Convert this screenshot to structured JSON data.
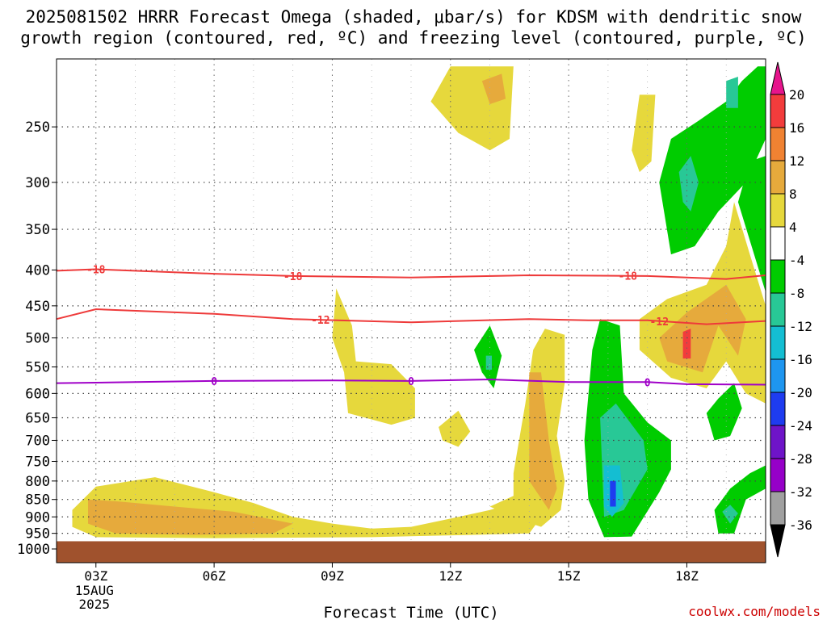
{
  "title_line1": "2025081502 HRRR Forecast Omega (shaded, μbar/s) for KDSM with dendritic snow",
  "title_line2": "growth region (contoured, red, ºC) and freezing level (contoured, purple, ºC)",
  "credit": "coolwx.com/models",
  "chart_data": {
    "type": "heatmap",
    "title": "2025081502 HRRR Forecast Omega (shaded, μbar/s) for KDSM with dendritic snow growth region (contoured, red, ºC) and freezing level (contoured, purple, ºC)",
    "xlabel": "Forecast Time (UTC)",
    "ylabel": "",
    "x_ticks": [
      "03Z",
      "06Z",
      "09Z",
      "12Z",
      "15Z",
      "18Z"
    ],
    "x_tick_hours": [
      3,
      6,
      9,
      12,
      15,
      18
    ],
    "x_date_label": [
      "15AUG",
      "2025"
    ],
    "xlim": [
      2.0,
      20.0
    ],
    "y_ticks": [
      250,
      300,
      350,
      400,
      450,
      500,
      550,
      600,
      650,
      700,
      750,
      800,
      850,
      900,
      950,
      1000
    ],
    "ylim": [
      200,
      1000
    ],
    "y_scale": "log-pressure",
    "grid": true,
    "colorbar": {
      "labels": [
        20,
        16,
        12,
        8,
        4,
        -4,
        -8,
        -12,
        -16,
        -20,
        -24,
        -28,
        -32,
        -36
      ],
      "bins": [
        {
          "lo": 16,
          "hi": 20,
          "color": "#f23c3c"
        },
        {
          "lo": 12,
          "hi": 16,
          "color": "#f08232"
        },
        {
          "lo": 8,
          "hi": 12,
          "color": "#e6aa3c"
        },
        {
          "lo": 4,
          "hi": 8,
          "color": "#e6d83c"
        },
        {
          "lo": -4,
          "hi": 4,
          "color": "#ffffff"
        },
        {
          "lo": -8,
          "hi": -4,
          "color": "#00cc00"
        },
        {
          "lo": -12,
          "hi": -8,
          "color": "#28c896"
        },
        {
          "lo": -16,
          "hi": -12,
          "color": "#14bed2"
        },
        {
          "lo": -20,
          "hi": -16,
          "color": "#1e96f0"
        },
        {
          "lo": -24,
          "hi": -20,
          "color": "#1e3cf0"
        },
        {
          "lo": -28,
          "hi": -24,
          "color": "#6e14c8"
        },
        {
          "lo": -32,
          "hi": -28,
          "color": "#9600c8"
        },
        {
          "lo": -36,
          "hi": -32,
          "color": "#a0a0a0"
        }
      ],
      "top_arrow_color": "#e6148c",
      "bottom_arrow_color": "#000000"
    },
    "omega_areas": [
      {
        "name": "upward-low-level-band",
        "color": "#e6d83c",
        "points": [
          [
            2.4,
            880
          ],
          [
            3.0,
            815
          ],
          [
            4.5,
            790
          ],
          [
            6.0,
            830
          ],
          [
            7.0,
            860
          ],
          [
            8.0,
            900
          ],
          [
            9.0,
            920
          ],
          [
            10.0,
            935
          ],
          [
            11.0,
            930
          ],
          [
            12.0,
            905
          ],
          [
            13.0,
            880
          ],
          [
            14.0,
            845
          ],
          [
            14.5,
            870
          ],
          [
            14.0,
            950
          ],
          [
            12.5,
            955
          ],
          [
            10.0,
            962
          ],
          [
            6.0,
            965
          ],
          [
            3.0,
            962
          ],
          [
            2.4,
            930
          ]
        ]
      },
      {
        "name": "upward-low-level-core",
        "color": "#e6aa3c",
        "points": [
          [
            2.8,
            850
          ],
          [
            3.5,
            855
          ],
          [
            5.0,
            870
          ],
          [
            6.5,
            885
          ],
          [
            8.0,
            920
          ],
          [
            7.5,
            950
          ],
          [
            5.5,
            955
          ],
          [
            3.5,
            950
          ],
          [
            2.8,
            920
          ]
        ]
      },
      {
        "name": "upward-aloft-11z-13z",
        "color": "#e6d83c",
        "points": [
          [
            11.5,
            230
          ],
          [
            12.0,
            205
          ],
          [
            13.6,
            205
          ],
          [
            13.5,
            260
          ],
          [
            13.0,
            270
          ],
          [
            12.2,
            255
          ]
        ]
      },
      {
        "name": "upward-aloft-core",
        "color": "#e6aa3c",
        "points": [
          [
            12.8,
            215
          ],
          [
            13.3,
            210
          ],
          [
            13.4,
            228
          ],
          [
            13.0,
            232
          ]
        ]
      },
      {
        "name": "upward-09z-column",
        "color": "#e6d83c",
        "points": [
          [
            9.1,
            425
          ],
          [
            9.5,
            480
          ],
          [
            9.6,
            540
          ],
          [
            10.5,
            545
          ],
          [
            11.1,
            590
          ],
          [
            11.1,
            650
          ],
          [
            10.5,
            665
          ],
          [
            9.4,
            640
          ],
          [
            9.3,
            560
          ],
          [
            9.0,
            500
          ]
        ]
      },
      {
        "name": "upward-14z-15z-column",
        "color": "#e6d83c",
        "points": [
          [
            13.6,
            780
          ],
          [
            13.9,
            620
          ],
          [
            14.1,
            520
          ],
          [
            14.4,
            485
          ],
          [
            14.9,
            495
          ],
          [
            14.9,
            580
          ],
          [
            14.7,
            690
          ],
          [
            14.9,
            800
          ],
          [
            14.8,
            880
          ],
          [
            14.3,
            930
          ],
          [
            13.8,
            910
          ],
          [
            13.0,
            870
          ],
          [
            13.6,
            840
          ]
        ]
      },
      {
        "name": "upward-14z-core",
        "color": "#e6aa3c",
        "points": [
          [
            14.0,
            560
          ],
          [
            14.3,
            560
          ],
          [
            14.5,
            700
          ],
          [
            14.7,
            820
          ],
          [
            14.5,
            880
          ],
          [
            14.0,
            800
          ]
        ]
      },
      {
        "name": "upward-12z-patch",
        "color": "#e6d83c",
        "points": [
          [
            11.7,
            670
          ],
          [
            12.2,
            635
          ],
          [
            12.5,
            680
          ],
          [
            12.2,
            715
          ],
          [
            11.8,
            700
          ]
        ]
      },
      {
        "name": "upward-16z-aloft",
        "color": "#e6d83c",
        "points": [
          [
            16.6,
            270
          ],
          [
            16.8,
            225
          ],
          [
            17.2,
            225
          ],
          [
            17.1,
            280
          ],
          [
            16.8,
            290
          ]
        ]
      },
      {
        "name": "upward-17z-20z-mass",
        "color": "#e6d83c",
        "points": [
          [
            16.8,
            470
          ],
          [
            17.5,
            440
          ],
          [
            18.5,
            420
          ],
          [
            19.0,
            370
          ],
          [
            19.2,
            320
          ],
          [
            19.6,
            380
          ],
          [
            20.0,
            450
          ],
          [
            20.0,
            620
          ],
          [
            19.5,
            600
          ],
          [
            19.0,
            540
          ],
          [
            18.5,
            590
          ],
          [
            17.6,
            570
          ],
          [
            16.8,
            520
          ]
        ]
      },
      {
        "name": "upward-17z-20z-core",
        "color": "#e6aa3c",
        "points": [
          [
            17.3,
            500
          ],
          [
            18.0,
            460
          ],
          [
            19.0,
            420
          ],
          [
            19.5,
            470
          ],
          [
            19.3,
            530
          ],
          [
            18.8,
            480
          ],
          [
            18.4,
            560
          ],
          [
            17.5,
            540
          ]
        ]
      },
      {
        "name": "upward-18z-max",
        "color": "#f23c3c",
        "points": [
          [
            17.9,
            490
          ],
          [
            18.1,
            485
          ],
          [
            18.1,
            535
          ],
          [
            17.9,
            535
          ]
        ]
      },
      {
        "name": "downward-15z-17z-column",
        "color": "#00cc00",
        "points": [
          [
            15.6,
            520
          ],
          [
            15.8,
            470
          ],
          [
            16.3,
            480
          ],
          [
            16.4,
            600
          ],
          [
            17.0,
            660
          ],
          [
            17.6,
            700
          ],
          [
            17.6,
            770
          ],
          [
            17.3,
            830
          ],
          [
            16.6,
            960
          ],
          [
            15.9,
            962
          ],
          [
            15.5,
            850
          ],
          [
            15.4,
            700
          ]
        ]
      },
      {
        "name": "downward-15z-17z-inner",
        "color": "#28c896",
        "points": [
          [
            15.8,
            650
          ],
          [
            16.2,
            620
          ],
          [
            16.9,
            700
          ],
          [
            17.0,
            770
          ],
          [
            16.4,
            880
          ],
          [
            15.9,
            900
          ]
        ]
      },
      {
        "name": "downward-16z-core",
        "color": "#14bed2",
        "points": [
          [
            15.9,
            760
          ],
          [
            16.3,
            760
          ],
          [
            16.4,
            860
          ],
          [
            16.1,
            900
          ],
          [
            15.9,
            870
          ]
        ]
      },
      {
        "name": "downward-16z-max",
        "color": "#1e3cf0",
        "points": [
          [
            16.05,
            800
          ],
          [
            16.2,
            800
          ],
          [
            16.2,
            870
          ],
          [
            16.05,
            870
          ]
        ]
      },
      {
        "name": "downward-18z-aloft",
        "color": "#00cc00",
        "points": [
          [
            17.3,
            300
          ],
          [
            17.6,
            260
          ],
          [
            18.3,
            245
          ],
          [
            19.0,
            230
          ],
          [
            19.4,
            215
          ],
          [
            19.8,
            205
          ],
          [
            20.0,
            205
          ],
          [
            20.0,
            260
          ],
          [
            19.5,
            300
          ],
          [
            18.8,
            330
          ],
          [
            18.2,
            370
          ],
          [
            17.6,
            380
          ]
        ]
      },
      {
        "name": "downward-18z-inner",
        "color": "#28c896",
        "points": [
          [
            17.8,
            290
          ],
          [
            18.1,
            275
          ],
          [
            18.3,
            300
          ],
          [
            18.1,
            330
          ],
          [
            17.9,
            320
          ]
        ]
      },
      {
        "name": "downward-19z-inner",
        "color": "#28c896",
        "points": [
          [
            19.0,
            215
          ],
          [
            19.3,
            212
          ],
          [
            19.3,
            235
          ],
          [
            19.0,
            235
          ]
        ]
      },
      {
        "name": "downward-19z-right",
        "color": "#00cc00",
        "points": [
          [
            19.3,
            320
          ],
          [
            19.6,
            280
          ],
          [
            20.0,
            275
          ],
          [
            20.0,
            430
          ]
        ]
      },
      {
        "name": "downward-20z-low",
        "color": "#00cc00",
        "points": [
          [
            18.7,
            880
          ],
          [
            19.1,
            820
          ],
          [
            19.6,
            780
          ],
          [
            20.0,
            760
          ],
          [
            20.0,
            820
          ],
          [
            19.5,
            850
          ],
          [
            19.2,
            950
          ],
          [
            18.8,
            950
          ]
        ]
      },
      {
        "name": "downward-19z-low-inner",
        "color": "#28c896",
        "points": [
          [
            18.9,
            885
          ],
          [
            19.1,
            865
          ],
          [
            19.3,
            890
          ],
          [
            19.1,
            920
          ]
        ]
      },
      {
        "name": "downward-19z-mid",
        "color": "#00cc00",
        "points": [
          [
            18.5,
            640
          ],
          [
            18.8,
            610
          ],
          [
            19.2,
            580
          ],
          [
            19.4,
            630
          ],
          [
            19.1,
            690
          ],
          [
            18.7,
            700
          ]
        ]
      },
      {
        "name": "downward-13z-blob",
        "color": "#00cc00",
        "points": [
          [
            12.6,
            520
          ],
          [
            13.0,
            480
          ],
          [
            13.3,
            530
          ],
          [
            13.1,
            590
          ],
          [
            12.8,
            560
          ]
        ]
      },
      {
        "name": "downward-13z-inner",
        "color": "#28c896",
        "points": [
          [
            12.9,
            530
          ],
          [
            13.05,
            530
          ],
          [
            13.05,
            555
          ],
          [
            12.9,
            555
          ]
        ]
      }
    ],
    "isotherms": [
      {
        "name": "-18",
        "color": "#ee3a3a",
        "x": [
          2.0,
          3.0,
          6.0,
          8.0,
          11.0,
          14.0,
          17.0,
          18.0,
          19.0,
          20.0
        ],
        "y": [
          401,
          399,
          405,
          408,
          410,
          407,
          408,
          410,
          412,
          407
        ]
      },
      {
        "name": "-12",
        "color": "#ee3a3a",
        "x": [
          2.0,
          3.0,
          6.0,
          8.0,
          11.0,
          14.0,
          15.5,
          17.0,
          18.5,
          20.0
        ],
        "y": [
          470,
          455,
          462,
          470,
          475,
          470,
          472,
          472,
          478,
          473
        ]
      },
      {
        "name": "0",
        "color": "#a000c8",
        "x": [
          2.0,
          4.0,
          6.0,
          9.0,
          11.0,
          13.0,
          15.0,
          17.0,
          18.0,
          20.0
        ],
        "y": [
          580,
          578,
          576,
          575,
          576,
          573,
          578,
          578,
          582,
          583
        ]
      }
    ],
    "ground": {
      "pressure_top": 975,
      "color": "#a0522d"
    }
  }
}
